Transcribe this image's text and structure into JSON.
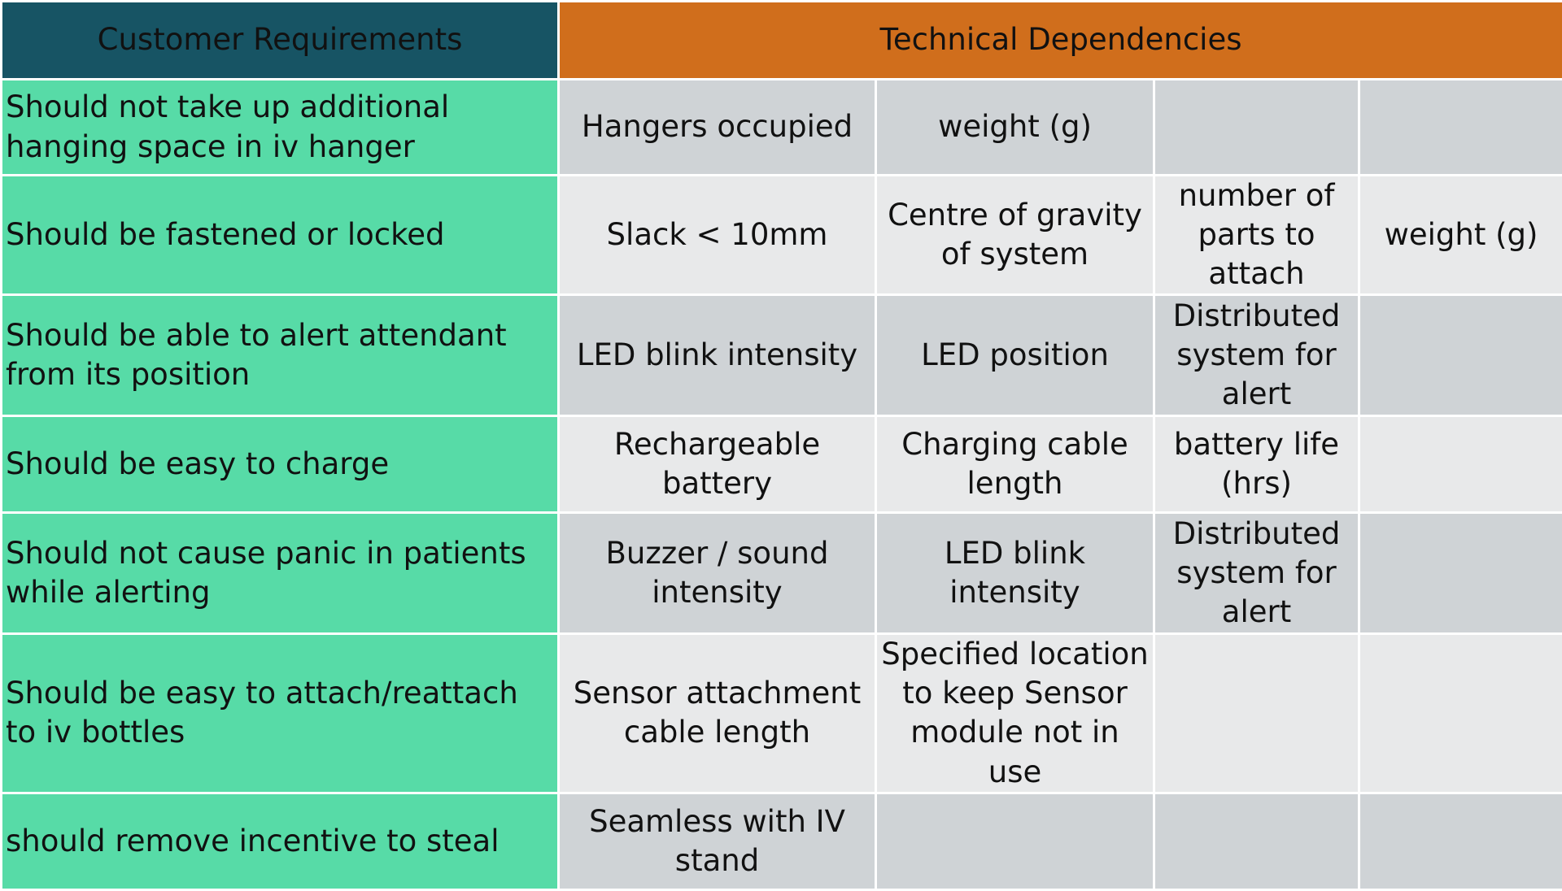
{
  "headers": {
    "customer_requirements": "Customer Requirements",
    "technical_dependencies": "Technical Dependencies"
  },
  "rows": [
    {
      "requirement": "Should not take up additional hanging space in iv hanger",
      "deps": [
        "Hangers occupied",
        "weight (g)",
        "",
        ""
      ]
    },
    {
      "requirement": "Should be fastened or locked",
      "deps": [
        "Slack < 10mm",
        "Centre of gravity of system",
        "number of parts to attach",
        "weight (g)"
      ]
    },
    {
      "requirement": "Should be able to alert attendant from its position",
      "deps": [
        "LED blink intensity",
        "LED position",
        "Distributed system for alert",
        ""
      ]
    },
    {
      "requirement": "Should be easy to charge",
      "deps": [
        "Rechargeable battery",
        "Charging cable length",
        "battery life (hrs)",
        ""
      ]
    },
    {
      "requirement": "Should not cause panic in patients while alerting",
      "deps": [
        "Buzzer / sound intensity",
        "LED blink intensity",
        "Distributed system for alert",
        ""
      ]
    },
    {
      "requirement": "Should be easy to attach/reattach to iv bottles",
      "deps": [
        "Sensor attachment cable length",
        "Specified location to keep Sensor module not in use",
        "",
        ""
      ]
    },
    {
      "requirement": "should remove incentive to steal",
      "deps": [
        "Seamless with IV stand",
        "",
        "",
        ""
      ]
    }
  ]
}
